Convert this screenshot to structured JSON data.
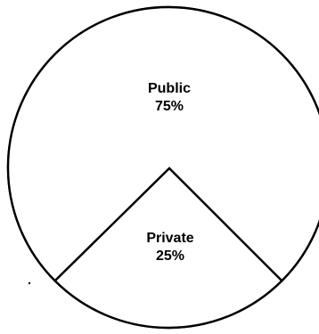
{
  "chart_data": {
    "type": "pie",
    "slices": [
      {
        "label": "Public",
        "value": 75,
        "value_label": "75%"
      },
      {
        "label": "Private",
        "value": 25,
        "value_label": "25%"
      }
    ],
    "start_angle_deg": 135,
    "direction": "clockwise",
    "colors": {
      "fill": "#ffffff",
      "stroke": "#000000"
    }
  }
}
